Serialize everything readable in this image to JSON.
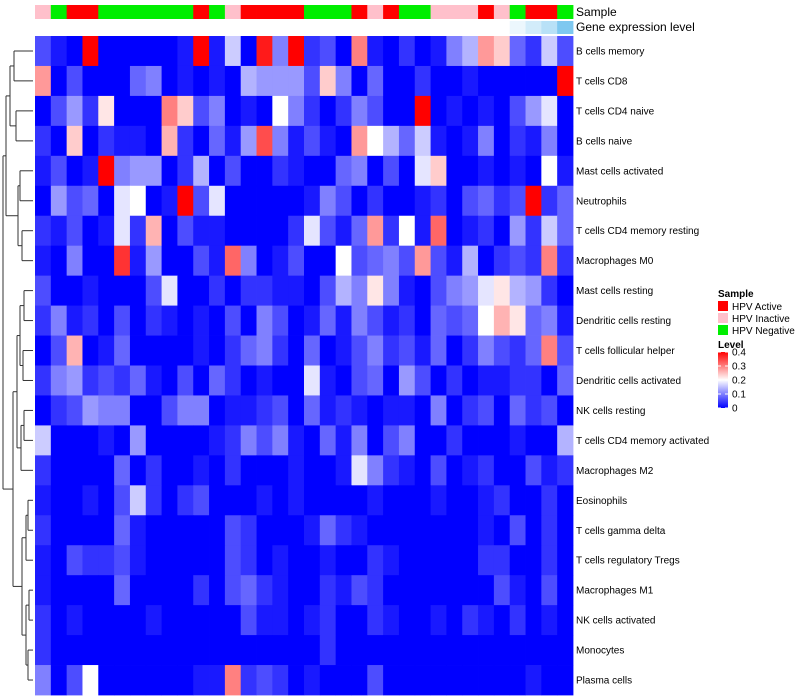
{
  "chart_data": {
    "type": "heatmap",
    "annotation_labels": {
      "sample": "Sample",
      "gene_expression": "Gene expression level"
    },
    "sample_groups": [
      "Inactive",
      "Negative",
      "Active",
      "Active",
      "Negative",
      "Negative",
      "Negative",
      "Negative",
      "Negative",
      "Negative",
      "Active",
      "Negative",
      "Inactive",
      "Active",
      "Active",
      "Active",
      "Active",
      "Negative",
      "Negative",
      "Negative",
      "Active",
      "Inactive",
      "Active",
      "Negative",
      "Negative",
      "Inactive",
      "Inactive",
      "Inactive",
      "Active",
      "Inactive",
      "Negative",
      "Active",
      "Active",
      "Negative"
    ],
    "gene_expression_levels": [
      0,
      0,
      0,
      0,
      0,
      0,
      0,
      0,
      0,
      0,
      0,
      0,
      0,
      0,
      0,
      0,
      0,
      0,
      0,
      0,
      0,
      0,
      0,
      0,
      0,
      0,
      0,
      0,
      0,
      0,
      0.15,
      0.35,
      0.55,
      1
    ],
    "rows": [
      "B cells memory",
      "T cells CD8",
      "T cells CD4 naive",
      "B cells naive",
      "Mast cells activated",
      "Neutrophils",
      "T cells CD4 memory resting",
      "Macrophages M0",
      "Mast cells resting",
      "Dendritic cells resting",
      "T cells follicular helper",
      "Dendritic cells activated",
      "NK cells resting",
      "T cells CD4 memory activated",
      "Macrophages M2",
      "Eosinophils",
      "T cells gamma delta",
      "T cells regulatory  Tregs",
      "Macrophages M1",
      "NK cells activated",
      "Monocytes",
      "Plasma cells"
    ],
    "values": [
      [
        0.06,
        0.02,
        0.0,
        0.4,
        0.0,
        0.0,
        0.0,
        0.0,
        0.0,
        0.02,
        0.4,
        0.02,
        0.16,
        0.0,
        0.38,
        0.1,
        0.4,
        0.04,
        0.06,
        0.0,
        0.3,
        0.02,
        0.0,
        0.04,
        0.0,
        0.02,
        0.1,
        0.14,
        0.28,
        0.24,
        0.08,
        0.04,
        0.16,
        0.06
      ],
      [
        0.28,
        0.0,
        0.06,
        0.0,
        0.0,
        0.0,
        0.08,
        0.1,
        0.0,
        0.02,
        0.0,
        0.02,
        0.0,
        0.14,
        0.12,
        0.12,
        0.12,
        0.06,
        0.24,
        0.1,
        0.0,
        0.08,
        0.0,
        0.0,
        0.04,
        0.0,
        0.0,
        0.02,
        0.0,
        0.0,
        0.0,
        0.0,
        0.0,
        0.4
      ],
      [
        0.0,
        0.06,
        0.12,
        0.04,
        0.22,
        0.0,
        0.0,
        0.0,
        0.3,
        0.24,
        0.06,
        0.1,
        0.0,
        0.02,
        0.0,
        0.2,
        0.1,
        0.04,
        0.0,
        0.04,
        0.1,
        0.06,
        0.0,
        0.0,
        0.4,
        0.0,
        0.02,
        0.0,
        0.02,
        0.0,
        0.06,
        0.12,
        0.18,
        0.0
      ],
      [
        0.04,
        0.0,
        0.24,
        0.0,
        0.04,
        0.02,
        0.02,
        0.0,
        0.26,
        0.04,
        0.0,
        0.08,
        0.02,
        0.12,
        0.34,
        0.1,
        0.02,
        0.06,
        0.02,
        0.0,
        0.28,
        0.2,
        0.14,
        0.08,
        0.16,
        0.02,
        0.0,
        0.02,
        0.1,
        0.0,
        0.04,
        0.02,
        0.1,
        0.0
      ],
      [
        0.02,
        0.06,
        0.0,
        0.02,
        0.4,
        0.1,
        0.12,
        0.12,
        0.0,
        0.04,
        0.14,
        0.0,
        0.06,
        0.0,
        0.0,
        0.04,
        0.02,
        0.0,
        0.0,
        0.08,
        0.1,
        0.0,
        0.06,
        0.0,
        0.18,
        0.24,
        0.0,
        0.0,
        0.02,
        0.0,
        0.02,
        0.0,
        0.2,
        0.02
      ],
      [
        0.0,
        0.12,
        0.06,
        0.08,
        0.0,
        0.18,
        0.2,
        0.0,
        0.02,
        0.4,
        0.06,
        0.18,
        0.0,
        0.0,
        0.0,
        0.0,
        0.0,
        0.02,
        0.1,
        0.06,
        0.0,
        0.04,
        0.0,
        0.0,
        0.02,
        0.04,
        0.0,
        0.06,
        0.08,
        0.04,
        0.06,
        0.4,
        0.04,
        0.08
      ],
      [
        0.04,
        0.02,
        0.06,
        0.0,
        0.02,
        0.18,
        0.04,
        0.26,
        0.0,
        0.06,
        0.02,
        0.02,
        0.0,
        0.0,
        0.0,
        0.0,
        0.04,
        0.18,
        0.06,
        0.02,
        0.08,
        0.28,
        0.04,
        0.2,
        0.02,
        0.32,
        0.0,
        0.02,
        0.04,
        0.0,
        0.12,
        0.04,
        0.16,
        0.08
      ],
      [
        0.02,
        0.0,
        0.1,
        0.0,
        0.0,
        0.36,
        0.02,
        0.12,
        0.0,
        0.0,
        0.06,
        0.02,
        0.32,
        0.1,
        0.0,
        0.02,
        0.06,
        0.0,
        0.0,
        0.2,
        0.06,
        0.08,
        0.1,
        0.06,
        0.28,
        0.06,
        0.02,
        0.14,
        0.0,
        0.04,
        0.06,
        0.04,
        0.3,
        0.04
      ],
      [
        0.06,
        0.0,
        0.0,
        0.02,
        0.0,
        0.0,
        0.0,
        0.06,
        0.18,
        0.0,
        0.0,
        0.04,
        0.0,
        0.04,
        0.04,
        0.02,
        0.02,
        0.0,
        0.06,
        0.14,
        0.1,
        0.22,
        0.1,
        0.02,
        0.0,
        0.06,
        0.1,
        0.12,
        0.18,
        0.22,
        0.14,
        0.12,
        0.04,
        0.0
      ],
      [
        0.04,
        0.1,
        0.02,
        0.04,
        0.0,
        0.06,
        0.0,
        0.04,
        0.02,
        0.0,
        0.02,
        0.0,
        0.06,
        0.0,
        0.1,
        0.06,
        0.0,
        0.02,
        0.08,
        0.02,
        0.1,
        0.06,
        0.02,
        0.04,
        0.0,
        0.08,
        0.06,
        0.08,
        0.2,
        0.26,
        0.22,
        0.08,
        0.1,
        0.02
      ],
      [
        0.0,
        0.06,
        0.26,
        0.0,
        0.02,
        0.08,
        0.0,
        0.0,
        0.0,
        0.0,
        0.02,
        0.0,
        0.04,
        0.08,
        0.1,
        0.04,
        0.0,
        0.08,
        0.0,
        0.02,
        0.06,
        0.1,
        0.04,
        0.06,
        0.02,
        0.08,
        0.0,
        0.04,
        0.1,
        0.06,
        0.04,
        0.08,
        0.3,
        0.06
      ],
      [
        0.04,
        0.1,
        0.12,
        0.04,
        0.06,
        0.04,
        0.08,
        0.02,
        0.0,
        0.06,
        0.0,
        0.08,
        0.04,
        0.0,
        0.02,
        0.0,
        0.0,
        0.18,
        0.02,
        0.0,
        0.06,
        0.08,
        0.0,
        0.12,
        0.06,
        0.0,
        0.04,
        0.0,
        0.02,
        0.02,
        0.04,
        0.04,
        0.0,
        0.08
      ],
      [
        0.0,
        0.04,
        0.06,
        0.12,
        0.1,
        0.1,
        0.0,
        0.0,
        0.06,
        0.1,
        0.1,
        0.0,
        0.02,
        0.02,
        0.04,
        0.06,
        0.0,
        0.08,
        0.02,
        0.04,
        0.02,
        0.0,
        0.02,
        0.02,
        0.0,
        0.1,
        0.0,
        0.04,
        0.06,
        0.0,
        0.08,
        0.04,
        0.06,
        0.0
      ],
      [
        0.16,
        0.0,
        0.0,
        0.0,
        0.02,
        0.0,
        0.12,
        0.0,
        0.0,
        0.0,
        0.0,
        0.02,
        0.04,
        0.1,
        0.06,
        0.1,
        0.02,
        0.0,
        0.08,
        0.02,
        0.1,
        0.0,
        0.06,
        0.1,
        0.0,
        0.0,
        0.04,
        0.0,
        0.0,
        0.0,
        0.02,
        0.0,
        0.0,
        0.14
      ],
      [
        0.04,
        0.0,
        0.0,
        0.0,
        0.0,
        0.08,
        0.0,
        0.04,
        0.0,
        0.0,
        0.02,
        0.0,
        0.04,
        0.0,
        0.0,
        0.0,
        0.02,
        0.0,
        0.0,
        0.02,
        0.18,
        0.1,
        0.04,
        0.02,
        0.0,
        0.06,
        0.0,
        0.02,
        0.04,
        0.0,
        0.0,
        0.06,
        0.02,
        0.04
      ],
      [
        0.02,
        0.0,
        0.0,
        0.02,
        0.0,
        0.06,
        0.16,
        0.04,
        0.0,
        0.04,
        0.06,
        0.0,
        0.0,
        0.0,
        0.02,
        0.0,
        0.02,
        0.0,
        0.0,
        0.0,
        0.0,
        0.02,
        0.0,
        0.0,
        0.0,
        0.02,
        0.0,
        0.0,
        0.02,
        0.04,
        0.0,
        0.0,
        0.04,
        0.0
      ],
      [
        0.04,
        0.0,
        0.0,
        0.0,
        0.0,
        0.08,
        0.02,
        0.0,
        0.0,
        0.0,
        0.0,
        0.0,
        0.06,
        0.04,
        0.0,
        0.0,
        0.0,
        0.02,
        0.08,
        0.04,
        0.02,
        0.0,
        0.0,
        0.0,
        0.0,
        0.0,
        0.0,
        0.0,
        0.02,
        0.0,
        0.06,
        0.0,
        0.04,
        0.0
      ],
      [
        0.02,
        0.0,
        0.06,
        0.04,
        0.04,
        0.06,
        0.02,
        0.0,
        0.0,
        0.0,
        0.0,
        0.0,
        0.06,
        0.04,
        0.0,
        0.02,
        0.0,
        0.0,
        0.02,
        0.0,
        0.0,
        0.04,
        0.02,
        0.0,
        0.0,
        0.0,
        0.0,
        0.0,
        0.04,
        0.04,
        0.0,
        0.0,
        0.04,
        0.0
      ],
      [
        0.02,
        0.0,
        0.0,
        0.0,
        0.0,
        0.08,
        0.0,
        0.0,
        0.0,
        0.0,
        0.04,
        0.0,
        0.06,
        0.08,
        0.04,
        0.02,
        0.0,
        0.0,
        0.04,
        0.02,
        0.06,
        0.04,
        0.0,
        0.0,
        0.0,
        0.0,
        0.0,
        0.0,
        0.0,
        0.06,
        0.02,
        0.0,
        0.06,
        0.0
      ],
      [
        0.04,
        0.0,
        0.02,
        0.0,
        0.0,
        0.0,
        0.0,
        0.02,
        0.0,
        0.0,
        0.0,
        0.0,
        0.0,
        0.06,
        0.02,
        0.02,
        0.0,
        0.02,
        0.04,
        0.0,
        0.0,
        0.04,
        0.02,
        0.0,
        0.0,
        0.02,
        0.0,
        0.04,
        0.02,
        0.0,
        0.04,
        0.0,
        0.02,
        0.0
      ],
      [
        0.04,
        0.0,
        0.0,
        0.0,
        0.0,
        0.0,
        0.0,
        0.0,
        0.0,
        0.0,
        0.0,
        0.0,
        0.0,
        0.0,
        0.0,
        0.0,
        0.0,
        0.0,
        0.04,
        0.0,
        0.0,
        0.0,
        0.0,
        0.0,
        0.0,
        0.0,
        0.0,
        0.0,
        0.0,
        0.0,
        0.0,
        0.0,
        0.0,
        0.0
      ],
      [
        0.1,
        0.0,
        0.06,
        0.2,
        0.0,
        0.0,
        0.0,
        0.0,
        0.0,
        0.0,
        0.02,
        0.02,
        0.3,
        0.04,
        0.06,
        0.04,
        0.0,
        0.02,
        0.0,
        0.0,
        0.0,
        0.06,
        0.0,
        0.0,
        0.0,
        0.0,
        0.0,
        0.0,
        0.0,
        0.0,
        0.0,
        0.02,
        0.0,
        0.0
      ]
    ],
    "legend": {
      "sample_title": "Sample",
      "sample_entries": [
        {
          "label": "HPV Active",
          "group": "Active",
          "color": "#ff0000"
        },
        {
          "label": "HPV Inactive",
          "group": "Inactive",
          "color": "#ffc0cb"
        },
        {
          "label": "HPV Negative",
          "group": "Negative",
          "color": "#00ee00"
        }
      ],
      "level_title": "Level",
      "level_ticks": [
        "0.4",
        "0.3",
        "0.2",
        "0.1",
        "0"
      ],
      "level_tick_values": [
        0.4,
        0.3,
        0.2,
        0.1,
        0
      ],
      "level_range": [
        0,
        0.4
      ]
    },
    "colors": {
      "low": "#0000ff",
      "mid": "#ffffff",
      "high": "#ff0000",
      "expression_low": "#ffffff",
      "expression_high": "#7ec8f0"
    }
  }
}
